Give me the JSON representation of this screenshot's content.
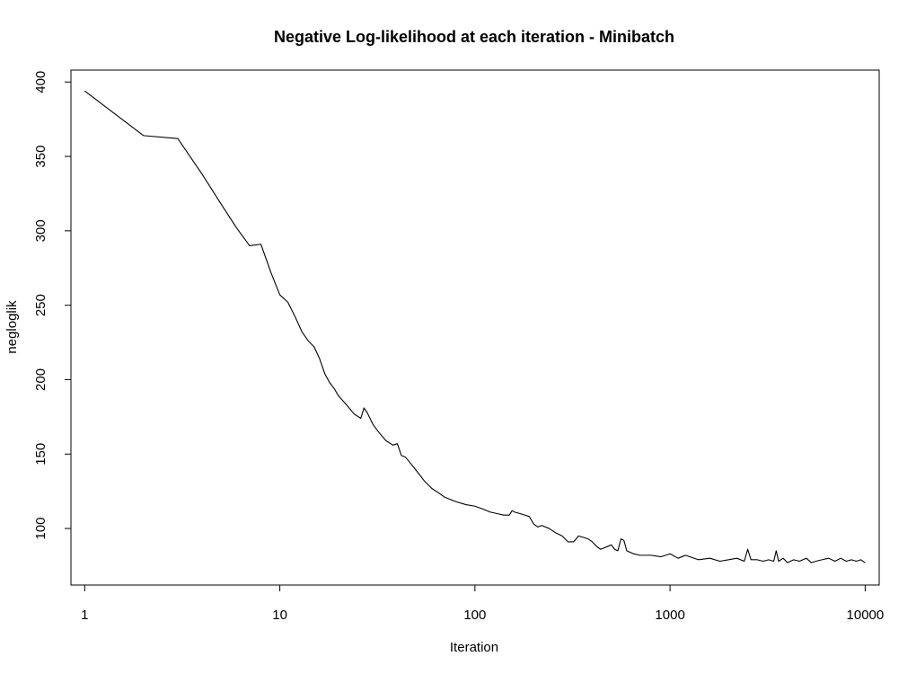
{
  "chart_data": {
    "type": "line",
    "title": "Negative Log-likelihood at each iteration - Minibatch",
    "xlabel": "Iteration",
    "ylabel": "negloglik",
    "x_scale": "log",
    "xlim": [
      0.85,
      11800
    ],
    "ylim": [
      62,
      408
    ],
    "x_ticks": [
      1,
      10,
      100,
      1000,
      10000
    ],
    "x_tick_labels": [
      "1",
      "10",
      "100",
      "1000",
      "10000"
    ],
    "y_ticks": [
      100,
      150,
      200,
      250,
      300,
      350,
      400
    ],
    "y_tick_labels": [
      "100",
      "150",
      "200",
      "250",
      "300",
      "350",
      "400"
    ],
    "grid": false,
    "series": [
      {
        "color": "#000000",
        "x": [
          1,
          2,
          3,
          4,
          5,
          6,
          7,
          8,
          9,
          10,
          11,
          12,
          13,
          14,
          15,
          16,
          17,
          18,
          19,
          20,
          22,
          24,
          26,
          27,
          28,
          30,
          32,
          35,
          38,
          40,
          42,
          44,
          46,
          50,
          55,
          60,
          65,
          70,
          80,
          90,
          100,
          110,
          120,
          130,
          140,
          150,
          155,
          160,
          170,
          180,
          190,
          200,
          210,
          220,
          240,
          260,
          280,
          300,
          320,
          340,
          360,
          380,
          400,
          420,
          440,
          460,
          480,
          500,
          520,
          540,
          560,
          580,
          600,
          650,
          700,
          800,
          900,
          1000,
          1100,
          1200,
          1400,
          1600,
          1800,
          2000,
          2200,
          2400,
          2500,
          2600,
          2800,
          3000,
          3200,
          3400,
          3500,
          3600,
          3800,
          4000,
          4300,
          4600,
          5000,
          5300,
          5600,
          6000,
          6500,
          7000,
          7500,
          8000,
          8500,
          9000,
          9500,
          10000
        ],
        "y": [
          394,
          364,
          362,
          338,
          318,
          302,
          290,
          291,
          272,
          257,
          252,
          242,
          232,
          226,
          222,
          214,
          204,
          198,
          194,
          189,
          183,
          177,
          174,
          181,
          178,
          170,
          165,
          159,
          156,
          157,
          149,
          148,
          145,
          139,
          132,
          127,
          124,
          121,
          118,
          116,
          115,
          113,
          111,
          110,
          109,
          109,
          112,
          111,
          110,
          109,
          108,
          103,
          101,
          102,
          100,
          97,
          95,
          91,
          91,
          95,
          94,
          93,
          91,
          88,
          86,
          87,
          88,
          89,
          86,
          85,
          93,
          92,
          85,
          83,
          82,
          82,
          81,
          83,
          80,
          82,
          79,
          80,
          78,
          79,
          80,
          78,
          86,
          79,
          79,
          78,
          79,
          78,
          85,
          78,
          80,
          77,
          79,
          78,
          80,
          77,
          78,
          79,
          80,
          78,
          80,
          78,
          79,
          78,
          79,
          77
        ]
      }
    ]
  }
}
